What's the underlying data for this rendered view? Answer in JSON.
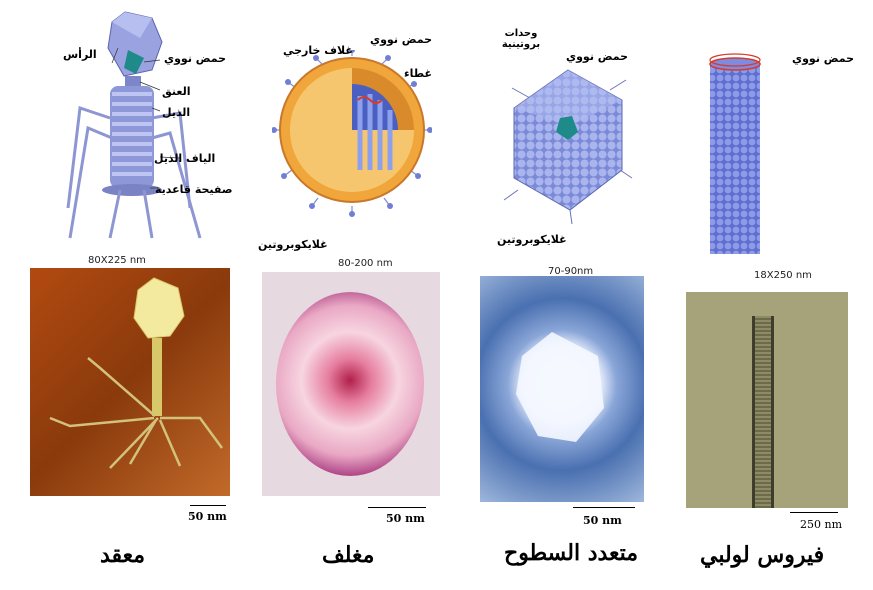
{
  "diagrams": {
    "complex": {
      "labels": {
        "head": "الرأس",
        "nucleic_acid": "حمض نووي",
        "neck": "العنق",
        "tail": "الذيل",
        "tail_fibers": "الياف الذيل",
        "base_plate": "صفيحة قاعدية"
      },
      "size": "80X225 nm"
    },
    "enveloped": {
      "labels": {
        "nucleic_acid": "حمض نووي",
        "outer_envelope": "غلاف خارجي",
        "capsid": "غطاء",
        "glycoprotein": "غلايكوبروتين"
      },
      "size": "80-200 nm"
    },
    "polyhedral": {
      "labels": {
        "protein_units": "وحدات بروتينية",
        "nucleic_acid": "حمض نووي",
        "glycoprotein": "غلايكوبروتين"
      },
      "size": "70-90nm"
    },
    "helical": {
      "labels": {
        "nucleic_acid": "حمض نووي"
      },
      "size": "18X250 nm"
    }
  },
  "scale_bars": {
    "complex": "50 nm",
    "enveloped": "50 nm",
    "polyhedral": "50 nm",
    "helical": "250 nm"
  },
  "titles": {
    "complex": "معقد",
    "enveloped": "مغلف",
    "polyhedral": "متعدد السطوح",
    "helical": "فيروس لولبي"
  },
  "colors": {
    "capsid_blue": "#6f7fd6",
    "envelope_orange": "#f0a63a",
    "nucleic_red": "#d83a2a"
  }
}
